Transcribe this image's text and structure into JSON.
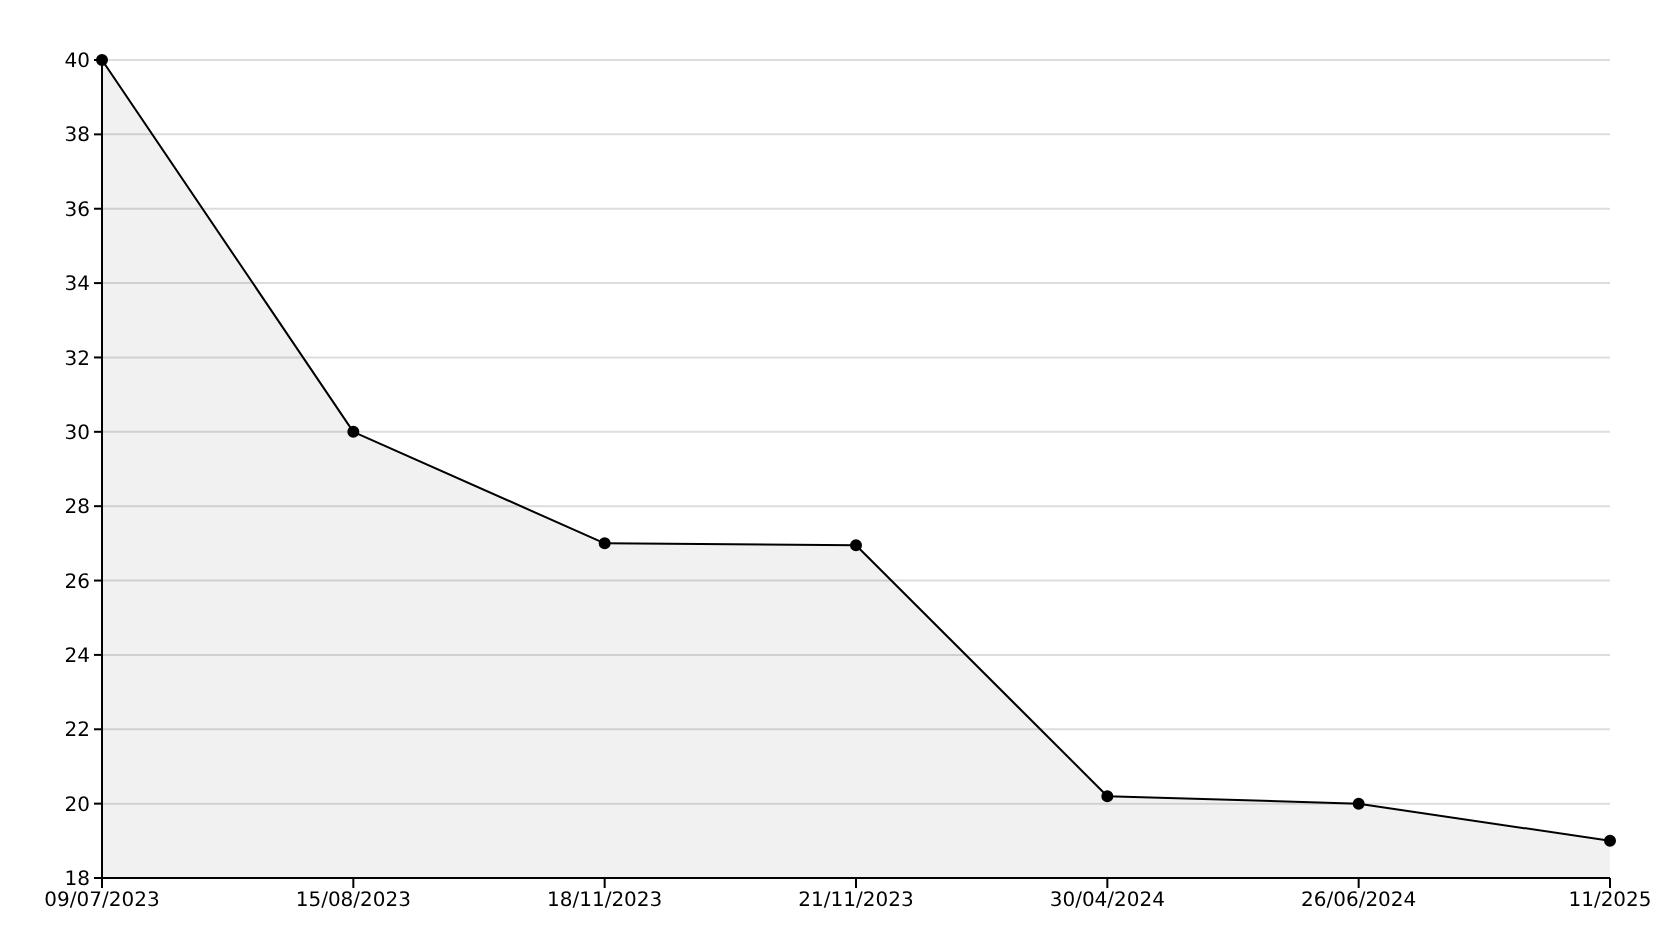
{
  "chart_data": {
    "type": "area",
    "categories": [
      "09/07/2023",
      "15/08/2023",
      "18/11/2023",
      "21/11/2023",
      "30/04/2024",
      "26/06/2024",
      "11/2025"
    ],
    "series": [
      {
        "color": "#000000",
        "values": [
          40,
          30,
          27,
          26.95,
          20.2,
          20,
          19
        ]
      }
    ],
    "ylim": [
      18,
      40
    ],
    "yticks": [
      18,
      20,
      22,
      24,
      26,
      28,
      30,
      32,
      34,
      36,
      38,
      40
    ],
    "grid": "y",
    "marker": "circle"
  }
}
